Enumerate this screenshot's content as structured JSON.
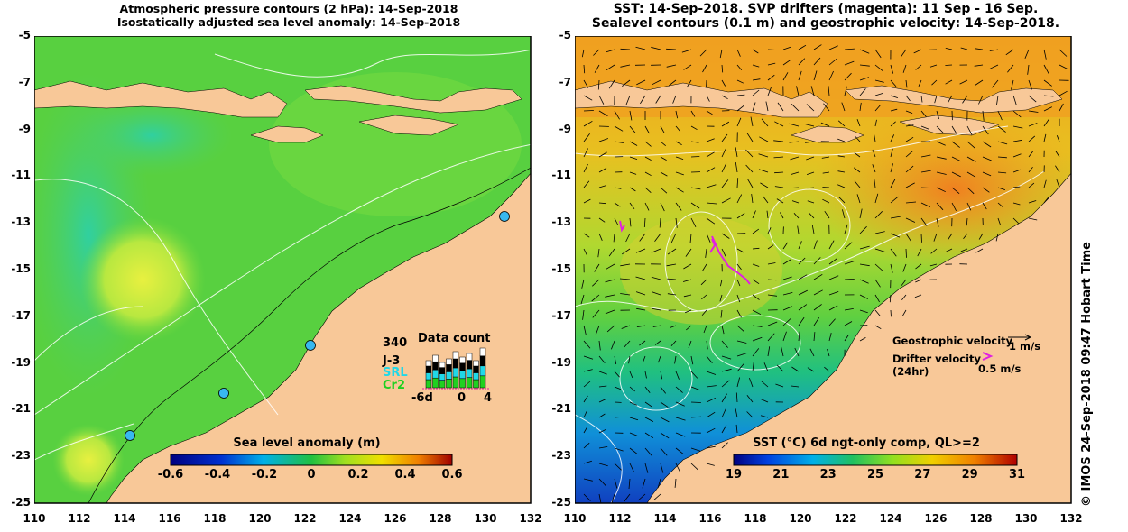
{
  "left_panel": {
    "title_line1": "Atmospheric pressure contours (2 hPa): 14-Sep-2018",
    "title_line2": "Isostatically adjusted sea level anomaly: 14-Sep-2018",
    "colorbar": {
      "title": "Sea level anomaly (m)",
      "ticks": [
        "-0.6",
        "-0.4",
        "-0.2",
        "0",
        "0.2",
        "0.4",
        "0.6"
      ]
    },
    "data_count": {
      "title": "Data count",
      "max_label": "340",
      "series_labels": [
        "J-3",
        "SRL",
        "Cr2"
      ],
      "series_colors": [
        "#000000",
        "#20d8e8",
        "#20d020"
      ],
      "x_ticks": [
        "-6d",
        "0",
        "4"
      ]
    }
  },
  "right_panel": {
    "title_line1": "SST: 14-Sep-2018. SVP drifters (magenta): 11 Sep - 16 Sep.",
    "title_line2": "Sealevel contours (0.1 m) and geostrophic velocity: 14-Sep-2018.",
    "colorbar": {
      "title": "SST (°C) 6d ngt-only comp, QL>=2",
      "ticks": [
        "19",
        "21",
        "23",
        "25",
        "27",
        "29",
        "31"
      ]
    },
    "legend": {
      "geostrophic_label": "Geostrophic velocity",
      "geostrophic_scale": "1 m/s",
      "drifter_label_line1": "Drifter velocity",
      "drifter_label_line2": "(24hr)",
      "drifter_scale": "0.5 m/s"
    }
  },
  "axes": {
    "y_labels": [
      "-5",
      "-7",
      "-9",
      "-11",
      "-13",
      "-15",
      "-17",
      "-19",
      "-21",
      "-23",
      "-25"
    ],
    "x_labels": [
      "110",
      "112",
      "114",
      "116",
      "118",
      "120",
      "122",
      "124",
      "126",
      "128",
      "130",
      "132"
    ]
  },
  "side_note": "©  IMOS 24-Sep-2018 09:47 Hobart Time",
  "colors": {
    "land": "#f8c898",
    "ocean_green": "#5cd03a",
    "sst_orange": "#f0a020",
    "drifter": "#e020e0"
  }
}
